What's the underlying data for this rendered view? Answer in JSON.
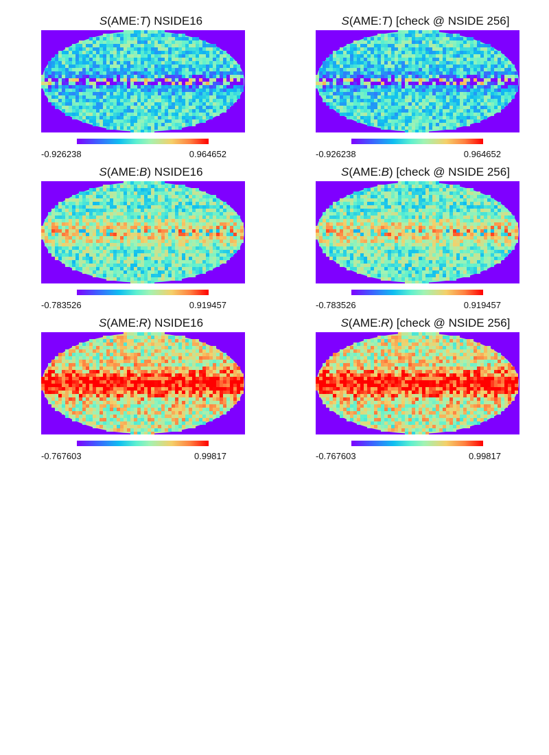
{
  "panels": [
    {
      "title_prefix": "S",
      "title_mid": "(AME:",
      "title_var": "T",
      "title_suffix": ") NSIDE16",
      "colorbar": {
        "min": "-0.926238",
        "max": "0.964652"
      },
      "variant": "T"
    },
    {
      "title_prefix": "S",
      "title_mid": "(AME:",
      "title_var": "T",
      "title_suffix": ") [check @ NSIDE 256]",
      "colorbar": {
        "min": "-0.926238",
        "max": "0.964652"
      },
      "variant": "T"
    },
    {
      "title_prefix": "S",
      "title_mid": "(AME:",
      "title_var": "B",
      "title_suffix": ") NSIDE16",
      "colorbar": {
        "min": "-0.783526",
        "max": "0.919457"
      },
      "variant": "B"
    },
    {
      "title_prefix": "S",
      "title_mid": "(AME:",
      "title_var": "B",
      "title_suffix": ") [check @ NSIDE 256]",
      "colorbar": {
        "min": "-0.783526",
        "max": "0.919457"
      },
      "variant": "B"
    },
    {
      "title_prefix": "S",
      "title_mid": "(AME:",
      "title_var": "R",
      "title_suffix": ") NSIDE16",
      "colorbar": {
        "min": "-0.767603",
        "max": "0.99817"
      },
      "variant": "R"
    },
    {
      "title_prefix": "S",
      "title_mid": "(AME:",
      "title_var": "R",
      "title_suffix": ") [check @ NSIDE 256]",
      "colorbar": {
        "min": "-0.767603",
        "max": "0.99817"
      },
      "variant": "R"
    }
  ],
  "colors": {
    "background_fill": "#7f00ff",
    "colormap": "rainbow"
  }
}
